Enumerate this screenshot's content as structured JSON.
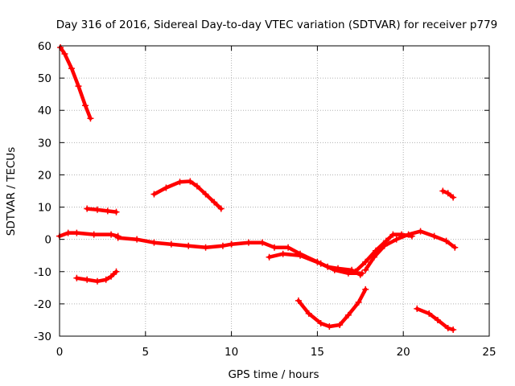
{
  "chart_data": {
    "type": "scatter",
    "title": "Day 316 of 2016, Sidereal Day-to-day VTEC variation (SDTVAR) for receiver p779",
    "xlabel": "GPS time / hours",
    "ylabel": "SDTVAR / TECUs",
    "xlim": [
      0,
      25
    ],
    "ylim": [
      -30,
      60
    ],
    "xticks": [
      0,
      5,
      10,
      15,
      20,
      25
    ],
    "yticks": [
      -30,
      -20,
      -10,
      0,
      10,
      20,
      30,
      40,
      50,
      60
    ],
    "grid": true,
    "marker": "+",
    "color": "#ff0000",
    "series": [
      {
        "name": "arc-1",
        "points": [
          [
            0.05,
            59.5
          ],
          [
            0.3,
            57.5
          ],
          [
            0.7,
            53.0
          ],
          [
            1.1,
            47.5
          ],
          [
            1.5,
            41.5
          ],
          [
            1.8,
            37.5
          ]
        ]
      },
      {
        "name": "arc-2",
        "points": [
          [
            1.6,
            9.5
          ],
          [
            2.2,
            9.2
          ],
          [
            2.8,
            8.8
          ],
          [
            3.3,
            8.5
          ]
        ]
      },
      {
        "name": "arc-3",
        "points": [
          [
            1.0,
            -12.0
          ],
          [
            1.6,
            -12.5
          ],
          [
            2.2,
            -13.0
          ],
          [
            2.7,
            -12.5
          ],
          [
            3.0,
            -11.5
          ],
          [
            3.3,
            -10.0
          ]
        ]
      },
      {
        "name": "arc-4",
        "points": [
          [
            0.0,
            1.0
          ],
          [
            0.5,
            2.0
          ],
          [
            1.0,
            2.0
          ],
          [
            2.0,
            1.5
          ],
          [
            3.0,
            1.5
          ],
          [
            3.4,
            1.0
          ]
        ]
      },
      {
        "name": "arc-5",
        "points": [
          [
            3.4,
            0.5
          ],
          [
            4.5,
            0.0
          ],
          [
            5.5,
            -1.0
          ],
          [
            6.5,
            -1.5
          ],
          [
            7.5,
            -2.0
          ],
          [
            8.5,
            -2.5
          ],
          [
            9.5,
            -2.0
          ],
          [
            10.0,
            -1.5
          ]
        ]
      },
      {
        "name": "arc-6",
        "points": [
          [
            10.0,
            -1.5
          ],
          [
            11.0,
            -1.0
          ],
          [
            11.8,
            -1.0
          ],
          [
            12.5,
            -2.5
          ],
          [
            13.3,
            -2.5
          ],
          [
            14.0,
            -4.5
          ],
          [
            15.0,
            -7.0
          ],
          [
            15.6,
            -8.5
          ],
          [
            16.2,
            -9.0
          ],
          [
            17.0,
            -9.5
          ],
          [
            17.5,
            -11.0
          ]
        ]
      },
      {
        "name": "arc-7",
        "points": [
          [
            12.2,
            -5.5
          ],
          [
            13.0,
            -4.5
          ],
          [
            14.0,
            -5.0
          ],
          [
            15.2,
            -7.5
          ],
          [
            16.0,
            -9.5
          ],
          [
            16.8,
            -10.5
          ],
          [
            17.6,
            -10.5
          ]
        ]
      },
      {
        "name": "arc-8",
        "points": [
          [
            17.2,
            -10.0
          ],
          [
            17.8,
            -7.0
          ],
          [
            18.4,
            -3.5
          ],
          [
            19.0,
            -0.5
          ],
          [
            19.4,
            1.5
          ],
          [
            19.9,
            1.5
          ],
          [
            20.5,
            1.0
          ]
        ]
      },
      {
        "name": "arc-9",
        "points": [
          [
            17.8,
            -9.5
          ],
          [
            18.3,
            -5.5
          ],
          [
            18.9,
            -2.0
          ],
          [
            19.6,
            0.0
          ],
          [
            20.3,
            1.5
          ],
          [
            21.0,
            2.5
          ],
          [
            21.8,
            1.0
          ],
          [
            22.5,
            -0.5
          ],
          [
            23.0,
            -2.5
          ]
        ]
      },
      {
        "name": "arc-10",
        "points": [
          [
            5.5,
            14.0
          ],
          [
            6.2,
            16.0
          ],
          [
            7.0,
            17.8
          ],
          [
            7.6,
            18.0
          ],
          [
            8.0,
            16.5
          ],
          [
            8.5,
            14.0
          ],
          [
            9.0,
            11.5
          ],
          [
            9.4,
            9.5
          ]
        ]
      },
      {
        "name": "arc-11",
        "points": [
          [
            13.9,
            -19.0
          ],
          [
            14.5,
            -23.0
          ],
          [
            15.2,
            -26.0
          ],
          [
            15.7,
            -27.0
          ],
          [
            16.3,
            -26.5
          ],
          [
            16.8,
            -23.5
          ],
          [
            17.4,
            -19.5
          ],
          [
            17.8,
            -15.5
          ]
        ]
      },
      {
        "name": "arc-12",
        "points": [
          [
            20.8,
            -21.5
          ],
          [
            21.5,
            -23.0
          ],
          [
            22.0,
            -25.0
          ],
          [
            22.6,
            -27.5
          ],
          [
            22.9,
            -28.0
          ]
        ]
      },
      {
        "name": "arc-13",
        "points": [
          [
            22.3,
            15.0
          ],
          [
            22.6,
            14.3
          ],
          [
            22.9,
            13.0
          ]
        ]
      }
    ]
  }
}
